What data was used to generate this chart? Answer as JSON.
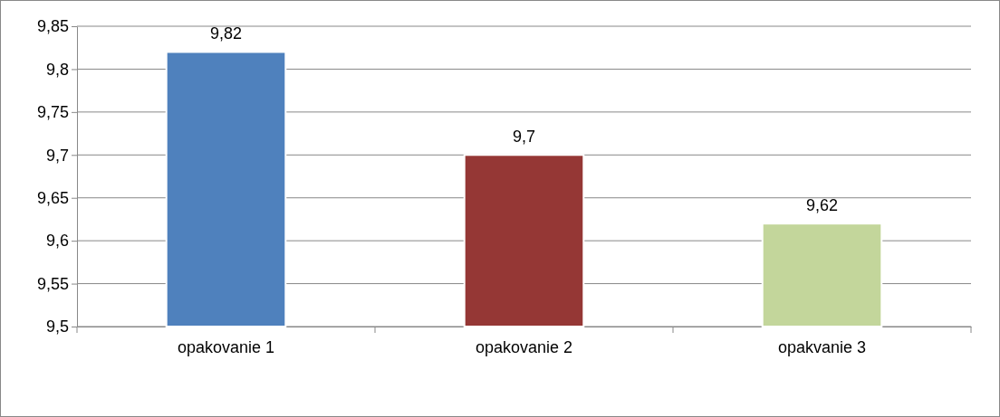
{
  "chart_data": {
    "type": "bar",
    "categories": [
      "opakovanie 1",
      "opakovanie 2",
      "opakvanie 3"
    ],
    "values": [
      9.82,
      9.7,
      9.62
    ],
    "colors": [
      "#4f81bd",
      "#953735",
      "#c3d69b"
    ],
    "value_labels": [
      "9,82",
      "9,7",
      "9,62"
    ],
    "ylim": [
      9.5,
      9.85
    ],
    "yticks": [
      {
        "value": 9.5,
        "label": "9,5"
      },
      {
        "value": 9.55,
        "label": "9,55"
      },
      {
        "value": 9.6,
        "label": "9,6"
      },
      {
        "value": 9.65,
        "label": "9,65"
      },
      {
        "value": 9.7,
        "label": "9,7"
      },
      {
        "value": 9.75,
        "label": "9,75"
      },
      {
        "value": 9.8,
        "label": "9,8"
      },
      {
        "value": 9.85,
        "label": "9,85"
      }
    ],
    "grid": "y"
  }
}
